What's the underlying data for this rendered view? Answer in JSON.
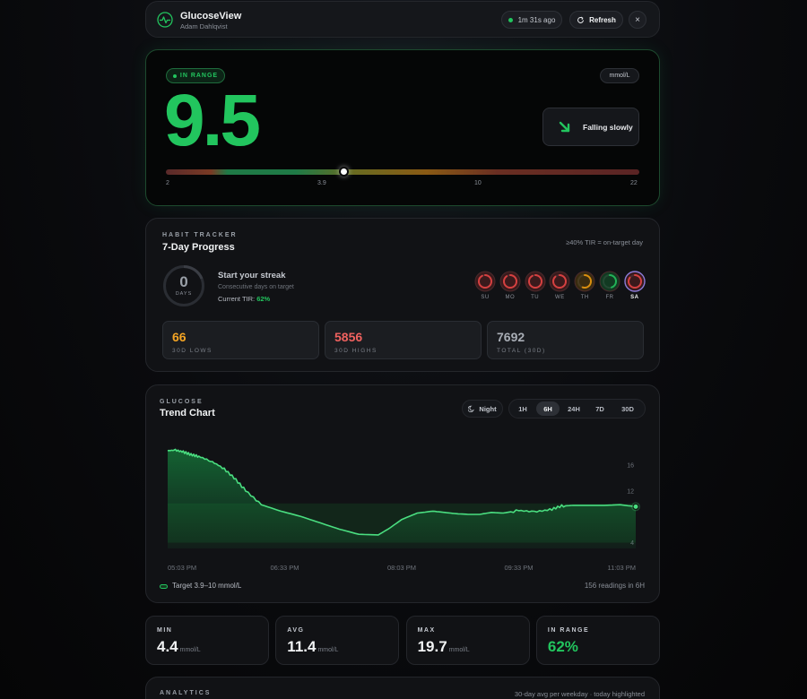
{
  "header": {
    "app_name": "GlucoseView",
    "user_name": "Adam Dahlqvist",
    "last_updated": "1m 31s ago",
    "refresh_label": "Refresh",
    "close_label": "×"
  },
  "reading": {
    "status": "IN RANGE",
    "unit": "mmol/L",
    "value": "9.5",
    "trend": "Falling slowly",
    "scale_ticks": [
      "2",
      "3.9",
      "10",
      "22"
    ],
    "scale_min": 2,
    "scale_max": 22,
    "marker_value": 9.5,
    "colors": {
      "in_range": "#22c55e",
      "low": "#ef4444",
      "high": "#d97706"
    }
  },
  "habit": {
    "eyebrow": "HABIT TRACKER",
    "title": "7-Day Progress",
    "note": "≥40% TIR = on-target day",
    "streak_count": "0",
    "streak_unit": "DAYS",
    "streak_title": "Start your streak",
    "streak_subtitle": "Consecutive days on target",
    "current_tir_label": "Current TIR:",
    "current_tir_value": "62%",
    "days": [
      {
        "label": "SU",
        "tir": 0.92,
        "color": "#ef4444"
      },
      {
        "label": "MO",
        "tir": 0.9,
        "color": "#ef4444"
      },
      {
        "label": "TU",
        "tir": 0.92,
        "color": "#ef4444"
      },
      {
        "label": "WE",
        "tir": 0.88,
        "color": "#ef4444"
      },
      {
        "label": "TH",
        "tir": 0.55,
        "color": "#f59e0b"
      },
      {
        "label": "FR",
        "tir": 0.45,
        "color": "#22c55e"
      },
      {
        "label": "SA",
        "tir": 0.85,
        "color": "#ef4444",
        "today": true
      }
    ],
    "stats": [
      {
        "value": "66",
        "label": "30D LOWS",
        "color": "#f5a524"
      },
      {
        "value": "5856",
        "label": "30D HIGHS",
        "color": "#f0625f"
      },
      {
        "value": "7692",
        "label": "TOTAL (30D)",
        "color": "#a8adb5"
      }
    ]
  },
  "trend_chart": {
    "eyebrow": "GLUCOSE",
    "title": "Trend Chart",
    "night_label": "Night",
    "ranges": [
      "1H",
      "6H",
      "24H",
      "7D",
      "30D"
    ],
    "active_range": "6H",
    "legend_label": "Target 3.9–10 mmol/L",
    "readings_note": "156 readings in 6H"
  },
  "chart_data": {
    "type": "area",
    "title": "Trend Chart",
    "unit": "mmol/L",
    "x_tick_labels": [
      "05:03 PM",
      "06:33 PM",
      "08:03 PM",
      "09:33 PM",
      "11:03 PM"
    ],
    "x_hours": [
      0,
      0.5,
      1,
      1.5,
      2,
      2.5,
      3,
      3.5,
      4,
      4.5,
      5,
      5.5,
      6
    ],
    "y_tick_labels": [
      "16",
      "12",
      "4"
    ],
    "y_ticks": [
      16,
      12,
      4
    ],
    "ylim": [
      3,
      20
    ],
    "target_range": [
      3.9,
      10
    ],
    "series": [
      {
        "x": [
          0,
          0.1,
          0.2,
          0.3,
          0.4,
          0.55,
          0.7,
          0.85,
          1.0,
          1.2,
          1.45,
          1.7,
          1.95,
          2.2,
          2.45,
          2.7,
          2.85,
          3.0,
          3.2,
          3.4,
          3.55,
          3.7,
          3.85,
          4.0,
          4.15,
          4.3,
          4.5,
          4.7,
          4.9,
          5.05,
          5.2,
          5.4,
          5.6,
          5.8,
          6.0
        ],
        "y": [
          18.2,
          18.3,
          18.0,
          17.6,
          17.3,
          16.6,
          15.6,
          14.0,
          12.0,
          9.8,
          8.8,
          8.0,
          7.0,
          6.0,
          5.2,
          5.1,
          6.2,
          7.5,
          8.5,
          8.8,
          8.6,
          8.4,
          8.3,
          8.3,
          8.6,
          8.5,
          8.9,
          8.7,
          9.0,
          9.6,
          9.7,
          9.7,
          9.7,
          9.8,
          9.5
        ]
      }
    ],
    "colors": {
      "line": "#4ade80",
      "fill": "#16a34a"
    }
  },
  "summary": [
    {
      "label": "MIN",
      "value": "4.4",
      "unit": "mmol/L",
      "color": "#f1f3f4"
    },
    {
      "label": "AVG",
      "value": "11.4",
      "unit": "mmol/L",
      "color": "#f1f3f4"
    },
    {
      "label": "MAX",
      "value": "19.7",
      "unit": "mmol/L",
      "color": "#f1f3f4"
    },
    {
      "label": "IN RANGE",
      "value": "62%",
      "unit": "",
      "color": "#22c55e"
    }
  ],
  "analytics": {
    "eyebrow": "ANALYTICS",
    "note": "30-day avg per weekday · today highlighted"
  }
}
